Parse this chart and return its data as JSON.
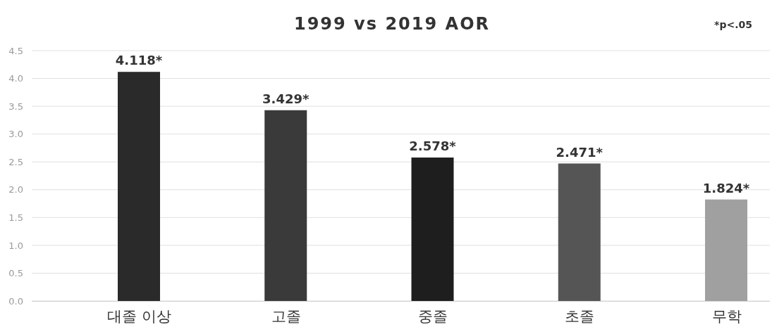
{
  "chart_data": {
    "type": "bar",
    "title": "1999 vs 2019 AOR",
    "annotations": [
      "*p<.05"
    ],
    "categories": [
      "대졸 이상",
      "고졸",
      "중졸",
      "초졸",
      "무학"
    ],
    "values": [
      4.118,
      3.429,
      2.578,
      2.471,
      1.824
    ],
    "value_labels": [
      "4.118*",
      "3.429*",
      "2.578*",
      "2.471*",
      "1.824*"
    ],
    "colors": [
      "#2a2a2a",
      "#3a3a3a",
      "#1e1e1e",
      "#555555",
      "#a0a0a0"
    ],
    "ylim": [
      0,
      4.5
    ],
    "yticks": [
      {
        "value": 0,
        "label": "0.0"
      },
      {
        "value": 0.5,
        "label": "0.5"
      },
      {
        "value": 1,
        "label": "1.0"
      },
      {
        "value": 1.5,
        "label": "1.5"
      },
      {
        "value": 2,
        "label": "2.0"
      },
      {
        "value": 2.5,
        "label": "2.5"
      },
      {
        "value": 3,
        "label": "3.0"
      },
      {
        "value": 3.5,
        "label": "3.5"
      },
      {
        "value": 4,
        "label": "4.0"
      },
      {
        "value": 4.5,
        "label": "4.5"
      }
    ],
    "grid": "y"
  }
}
